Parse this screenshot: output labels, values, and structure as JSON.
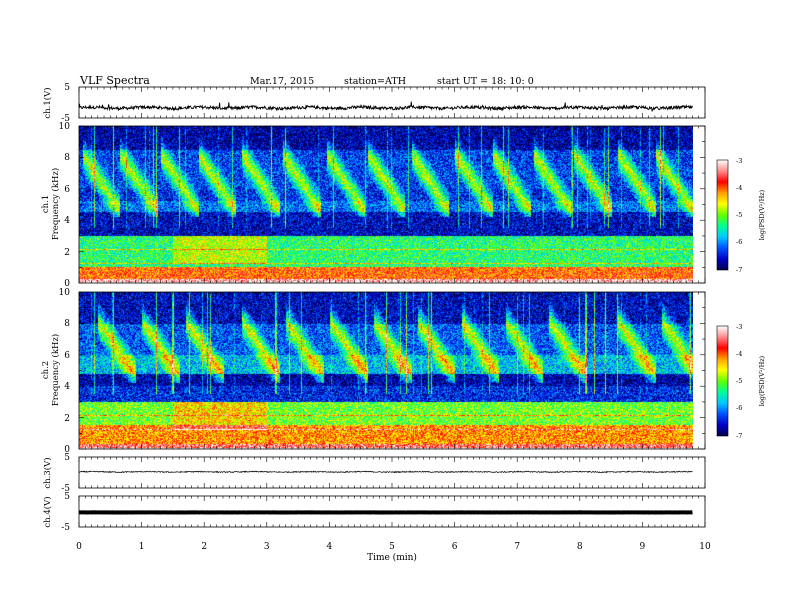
{
  "header": {
    "title": "VLF  Spectra",
    "date": "Mar.17, 2015",
    "station": "station=ATH",
    "start": "start  UT  =   18: 10: 0"
  },
  "chart_data": [
    {
      "type": "line",
      "id": "ch1-waveform",
      "ylabel": "ch.1(V)",
      "ylim": [
        -5,
        5
      ],
      "ytick_labels": [
        "5",
        "-5"
      ],
      "x_range_min": [
        0,
        9.8
      ],
      "baseline_value": -1.7,
      "series_color": "#000000"
    },
    {
      "type": "heatmap",
      "id": "ch1-spectrogram",
      "ylabel_lines": [
        "ch.1",
        "Frequency  (kHz)"
      ],
      "ylim": [
        0,
        10
      ],
      "ytick_labels": [
        "0",
        "2",
        "4",
        "6",
        "8",
        "10"
      ],
      "x_range_min": [
        0,
        9.8
      ],
      "colorbar": {
        "label": "log(PSD(V²/Hz)",
        "range": [
          -7,
          -3
        ],
        "tick_labels": [
          "-3",
          "-4",
          "-5",
          "-6",
          "-7"
        ],
        "colors": [
          "#00004a",
          "#0000c8",
          "#0050ff",
          "#00c8ff",
          "#00ff96",
          "#64ff00",
          "#ffff00",
          "#ffa000",
          "#ff0000",
          "#ff8c8c",
          "#ffffff"
        ]
      },
      "whistler_onsets_min": [
        0.05,
        0.65,
        1.3,
        1.9,
        2.6,
        3.25,
        3.95,
        4.6,
        5.3,
        6.0,
        6.6,
        7.25,
        7.9,
        8.6,
        9.2
      ],
      "bands_kHz": [
        {
          "from": 0.0,
          "to": 0.25,
          "level": -3.2
        },
        {
          "from": 0.25,
          "to": 1.0,
          "level": -4.0
        },
        {
          "from": 1.0,
          "to": 3.0,
          "level": -5.3
        },
        {
          "from": 3.0,
          "to": 4.5,
          "level": -6.6
        },
        {
          "from": 4.5,
          "to": 5.2,
          "level": -6.1
        },
        {
          "from": 5.2,
          "to": 6.0,
          "level": -6.4
        },
        {
          "from": 6.0,
          "to": 8.5,
          "level": -6.3
        },
        {
          "from": 8.5,
          "to": 10.0,
          "level": -6.7
        }
      ]
    },
    {
      "type": "heatmap",
      "id": "ch2-spectrogram",
      "ylabel_lines": [
        "ch.2",
        "Frequency  (kHz)"
      ],
      "ylim": [
        0,
        10
      ],
      "ytick_labels": [
        "0",
        "2",
        "4",
        "6",
        "8",
        "10"
      ],
      "x_range_min": [
        0,
        9.8
      ],
      "colorbar": {
        "label": "log(PSD(V²/Hz)",
        "range": [
          -7,
          -3
        ],
        "tick_labels": [
          "-3",
          "-4",
          "-5",
          "-6",
          "-7"
        ],
        "colors": [
          "#00004a",
          "#0000c8",
          "#0050ff",
          "#00c8ff",
          "#00ff96",
          "#64ff00",
          "#ffff00",
          "#ffa000",
          "#ff0000",
          "#ff8c8c",
          "#ffffff"
        ]
      },
      "whistler_onsets_min": [
        0.3,
        1.0,
        1.7,
        2.6,
        3.3,
        4.0,
        4.7,
        5.4,
        6.1,
        6.8,
        7.5,
        8.6,
        9.3
      ],
      "bands_kHz": [
        {
          "from": 0.0,
          "to": 0.3,
          "level": -3.5
        },
        {
          "from": 0.3,
          "to": 1.5,
          "level": -4.2
        },
        {
          "from": 1.5,
          "to": 3.0,
          "level": -5.0
        },
        {
          "from": 3.0,
          "to": 4.0,
          "level": -6.4
        },
        {
          "from": 4.0,
          "to": 4.8,
          "level": -6.7
        },
        {
          "from": 4.8,
          "to": 6.0,
          "level": -5.8
        },
        {
          "from": 6.0,
          "to": 8.0,
          "level": -6.2
        },
        {
          "from": 8.0,
          "to": 10.0,
          "level": -6.6
        }
      ]
    },
    {
      "type": "line",
      "id": "ch3-waveform",
      "ylabel": "ch.3(V)",
      "ylim": [
        -5,
        5
      ],
      "ytick_labels": [
        "5",
        "-5"
      ],
      "x_range_min": [
        0,
        9.8
      ],
      "baseline_value": 0.2,
      "series_color": "#000000"
    },
    {
      "type": "line",
      "id": "ch4-waveform",
      "ylabel": "ch.4(V)",
      "ylim": [
        -5,
        5
      ],
      "ytick_labels": [
        "5",
        "-5"
      ],
      "x_range_min": [
        0,
        9.8
      ],
      "baseline_value": -0.3,
      "series_color": "#000000"
    }
  ],
  "x_axis": {
    "label": "Time  (min)",
    "range": [
      0,
      10
    ],
    "tick_labels": [
      "0",
      "1",
      "2",
      "3",
      "4",
      "5",
      "6",
      "7",
      "8",
      "9",
      "10"
    ]
  }
}
